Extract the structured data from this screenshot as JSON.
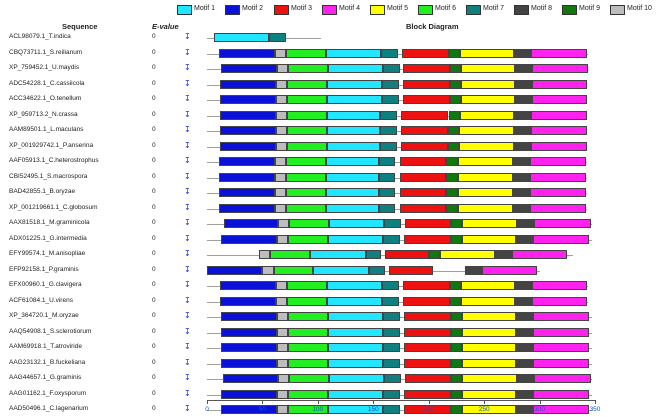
{
  "legend": [
    {
      "label": "Motif 1",
      "color": "#22e5ff"
    },
    {
      "label": "Motif 2",
      "color": "#0a12d8"
    },
    {
      "label": "Motif 3",
      "color": "#ee1111"
    },
    {
      "label": "Motif 4",
      "color": "#ff22ee"
    },
    {
      "label": "Motif 5",
      "color": "#ffff00"
    },
    {
      "label": "Motif 6",
      "color": "#22ee22"
    },
    {
      "label": "Motif 7",
      "color": "#0f7f7f"
    },
    {
      "label": "Motif 8",
      "color": "#444444"
    },
    {
      "label": "Motif 9",
      "color": "#117711"
    },
    {
      "label": "Motif 10",
      "color": "#bdbdbd"
    }
  ],
  "headers": {
    "sequence": "Sequence",
    "evalue": "E-value",
    "block": "Block Diagram"
  },
  "strand_icon": "↧",
  "axis": {
    "ticks": [
      0,
      50,
      100,
      150,
      200,
      250,
      300,
      350
    ],
    "max": 350
  },
  "rows": [
    {
      "name": "ACL98079.1_T.indica",
      "evalue": "0",
      "len": 103,
      "motifs": [
        [
          1,
          6,
          56
        ],
        [
          7,
          56,
          71
        ]
      ]
    },
    {
      "name": "CBQ73711.1_S.reilianum",
      "evalue": "0",
      "len": 344,
      "motifs": [
        [
          2,
          11,
          61
        ],
        [
          10,
          61,
          71
        ],
        [
          6,
          71,
          107
        ],
        [
          1,
          107,
          157
        ],
        [
          7,
          157,
          172
        ],
        [
          3,
          176,
          218
        ],
        [
          9,
          218,
          228
        ],
        [
          5,
          228,
          277
        ],
        [
          8,
          277,
          292
        ],
        [
          4,
          292,
          343
        ]
      ]
    },
    {
      "name": "XP_759452.1_U.maydis",
      "evalue": "0",
      "len": 344,
      "motifs": [
        [
          2,
          13,
          63
        ],
        [
          10,
          63,
          73
        ],
        [
          6,
          73,
          109
        ],
        [
          1,
          109,
          159
        ],
        [
          7,
          159,
          174
        ],
        [
          3,
          177,
          219
        ],
        [
          9,
          219,
          229
        ],
        [
          5,
          229,
          278
        ],
        [
          8,
          278,
          293
        ],
        [
          4,
          293,
          344
        ]
      ]
    },
    {
      "name": "ADC54228.1_C.cassiicola",
      "evalue": "0",
      "len": 343,
      "motifs": [
        [
          2,
          12,
          62
        ],
        [
          10,
          62,
          72
        ],
        [
          6,
          72,
          108
        ],
        [
          1,
          108,
          158
        ],
        [
          7,
          158,
          173
        ],
        [
          3,
          177,
          219
        ],
        [
          9,
          219,
          229
        ],
        [
          5,
          229,
          278
        ],
        [
          8,
          278,
          293
        ],
        [
          4,
          293,
          343
        ]
      ]
    },
    {
      "name": "ACC34622.1_O.tenellum",
      "evalue": "0",
      "len": 343,
      "motifs": [
        [
          2,
          12,
          62
        ],
        [
          10,
          62,
          72
        ],
        [
          6,
          72,
          108
        ],
        [
          1,
          108,
          158
        ],
        [
          7,
          158,
          173
        ],
        [
          3,
          177,
          219
        ],
        [
          9,
          219,
          229
        ],
        [
          5,
          229,
          278
        ],
        [
          8,
          278,
          293
        ],
        [
          4,
          293,
          343
        ]
      ]
    },
    {
      "name": "XP_959713.2_N.crassa",
      "evalue": "0",
      "len": 343,
      "motifs": [
        [
          2,
          12,
          62
        ],
        [
          10,
          62,
          72
        ],
        [
          6,
          72,
          108
        ],
        [
          1,
          108,
          156
        ],
        [
          7,
          156,
          171
        ],
        [
          3,
          175,
          217
        ],
        [
          9,
          218,
          228
        ],
        [
          5,
          228,
          277
        ],
        [
          8,
          277,
          292
        ],
        [
          4,
          292,
          343
        ]
      ]
    },
    {
      "name": "AAM89501.1_L.maculans",
      "evalue": "0",
      "len": 343,
      "motifs": [
        [
          2,
          12,
          62
        ],
        [
          10,
          62,
          72
        ],
        [
          6,
          72,
          108
        ],
        [
          1,
          108,
          156
        ],
        [
          7,
          156,
          171
        ],
        [
          3,
          175,
          217
        ],
        [
          9,
          217,
          227
        ],
        [
          5,
          227,
          277
        ],
        [
          8,
          277,
          292
        ],
        [
          4,
          292,
          343
        ]
      ]
    },
    {
      "name": "XP_001929742.1_P.anserina",
      "evalue": "0",
      "len": 343,
      "motifs": [
        [
          2,
          12,
          62
        ],
        [
          10,
          62,
          72
        ],
        [
          6,
          72,
          108
        ],
        [
          1,
          108,
          156
        ],
        [
          7,
          156,
          171
        ],
        [
          3,
          175,
          217
        ],
        [
          9,
          217,
          227
        ],
        [
          5,
          227,
          277
        ],
        [
          8,
          277,
          292
        ],
        [
          4,
          292,
          343
        ]
      ]
    },
    {
      "name": "AAF05913.1_C.heterostrophus",
      "evalue": "0",
      "len": 343,
      "motifs": [
        [
          2,
          11,
          61
        ],
        [
          10,
          61,
          71
        ],
        [
          6,
          71,
          107
        ],
        [
          1,
          107,
          155
        ],
        [
          7,
          155,
          170
        ],
        [
          3,
          174,
          216
        ],
        [
          9,
          216,
          226
        ],
        [
          5,
          226,
          276
        ],
        [
          8,
          276,
          291
        ],
        [
          4,
          291,
          342
        ]
      ]
    },
    {
      "name": "CBI52495.1_S.macrospora",
      "evalue": "0",
      "len": 343,
      "motifs": [
        [
          2,
          11,
          61
        ],
        [
          10,
          61,
          71
        ],
        [
          6,
          71,
          107
        ],
        [
          1,
          107,
          155
        ],
        [
          7,
          155,
          170
        ],
        [
          3,
          174,
          216
        ],
        [
          9,
          216,
          226
        ],
        [
          5,
          226,
          276
        ],
        [
          8,
          276,
          291
        ],
        [
          4,
          291,
          342
        ]
      ]
    },
    {
      "name": "BAD42855.1_B.oryzae",
      "evalue": "0",
      "len": 343,
      "motifs": [
        [
          2,
          11,
          61
        ],
        [
          10,
          61,
          71
        ],
        [
          6,
          71,
          107
        ],
        [
          1,
          107,
          155
        ],
        [
          7,
          155,
          170
        ],
        [
          3,
          174,
          216
        ],
        [
          9,
          216,
          226
        ],
        [
          5,
          226,
          276
        ],
        [
          8,
          276,
          291
        ],
        [
          4,
          291,
          342
        ]
      ]
    },
    {
      "name": "XP_001219661.1_C.globosum",
      "evalue": "0",
      "len": 343,
      "motifs": [
        [
          2,
          11,
          61
        ],
        [
          10,
          61,
          71
        ],
        [
          6,
          71,
          107
        ],
        [
          1,
          107,
          155
        ],
        [
          7,
          155,
          170
        ],
        [
          3,
          174,
          216
        ],
        [
          9,
          216,
          226
        ],
        [
          5,
          226,
          276
        ],
        [
          8,
          276,
          291
        ],
        [
          4,
          291,
          342
        ]
      ]
    },
    {
      "name": "AAX81518.1_M.graminicola",
      "evalue": "0",
      "len": 347,
      "motifs": [
        [
          2,
          15,
          64
        ],
        [
          10,
          64,
          74
        ],
        [
          6,
          74,
          110
        ],
        [
          1,
          110,
          160
        ],
        [
          7,
          160,
          175
        ],
        [
          3,
          179,
          220
        ],
        [
          9,
          220,
          230
        ],
        [
          5,
          230,
          280
        ],
        [
          8,
          280,
          295
        ],
        [
          4,
          295,
          346
        ]
      ]
    },
    {
      "name": "ADX01225.1_G.intermedia",
      "evalue": "0",
      "len": 347,
      "motifs": [
        [
          2,
          13,
          63
        ],
        [
          10,
          63,
          73
        ],
        [
          6,
          73,
          109
        ],
        [
          1,
          109,
          159
        ],
        [
          7,
          159,
          174
        ],
        [
          3,
          178,
          220
        ],
        [
          9,
          220,
          230
        ],
        [
          5,
          230,
          279
        ],
        [
          8,
          279,
          294
        ],
        [
          4,
          294,
          345
        ]
      ]
    },
    {
      "name": "EFY99574.1_M.anisopliae",
      "evalue": "0",
      "len": 330,
      "motifs": [
        [
          10,
          47,
          57
        ],
        [
          6,
          57,
          93
        ],
        [
          1,
          93,
          143
        ],
        [
          7,
          143,
          157
        ],
        [
          3,
          161,
          200
        ],
        [
          9,
          200,
          210
        ],
        [
          5,
          210,
          260
        ],
        [
          8,
          260,
          275
        ],
        [
          4,
          275,
          325
        ]
      ]
    },
    {
      "name": "EFP92158.1_P.graminis",
      "evalue": "0",
      "len": 300,
      "motifs": [
        [
          2,
          0,
          50
        ],
        [
          10,
          50,
          60
        ],
        [
          6,
          60,
          96
        ],
        [
          1,
          96,
          146
        ],
        [
          7,
          146,
          161
        ],
        [
          3,
          164,
          204
        ],
        [
          8,
          233,
          248
        ],
        [
          4,
          248,
          298
        ]
      ]
    },
    {
      "name": "EFX00960.1_G.clavigera",
      "evalue": "0",
      "len": 344,
      "motifs": [
        [
          2,
          12,
          62
        ],
        [
          10,
          62,
          72
        ],
        [
          6,
          72,
          108
        ],
        [
          1,
          108,
          158
        ],
        [
          7,
          158,
          173
        ],
        [
          3,
          177,
          219
        ],
        [
          9,
          219,
          229
        ],
        [
          5,
          229,
          278
        ],
        [
          8,
          278,
          293
        ],
        [
          4,
          293,
          343
        ]
      ]
    },
    {
      "name": "ACF61084.1_U.virens",
      "evalue": "0",
      "len": 344,
      "motifs": [
        [
          2,
          12,
          62
        ],
        [
          10,
          62,
          72
        ],
        [
          6,
          72,
          108
        ],
        [
          1,
          108,
          158
        ],
        [
          7,
          158,
          173
        ],
        [
          3,
          177,
          219
        ],
        [
          9,
          219,
          229
        ],
        [
          5,
          229,
          278
        ],
        [
          8,
          278,
          293
        ],
        [
          4,
          293,
          343
        ]
      ]
    },
    {
      "name": "XP_364720.1_M.oryzae",
      "evalue": "0",
      "len": 347,
      "motifs": [
        [
          2,
          13,
          63
        ],
        [
          10,
          63,
          73
        ],
        [
          6,
          73,
          109
        ],
        [
          1,
          109,
          159
        ],
        [
          7,
          159,
          174
        ],
        [
          3,
          178,
          220
        ],
        [
          9,
          220,
          230
        ],
        [
          5,
          230,
          279
        ],
        [
          8,
          279,
          294
        ],
        [
          4,
          294,
          345
        ]
      ]
    },
    {
      "name": "AAQ54908.1_S.sclerotiorum",
      "evalue": "0",
      "len": 347,
      "motifs": [
        [
          2,
          13,
          63
        ],
        [
          10,
          63,
          73
        ],
        [
          6,
          73,
          109
        ],
        [
          1,
          109,
          159
        ],
        [
          7,
          159,
          174
        ],
        [
          3,
          178,
          220
        ],
        [
          9,
          220,
          230
        ],
        [
          5,
          230,
          279
        ],
        [
          8,
          279,
          294
        ],
        [
          4,
          294,
          345
        ]
      ]
    },
    {
      "name": "AAM69918.1_T.atroviride",
      "evalue": "0",
      "len": 347,
      "motifs": [
        [
          2,
          13,
          63
        ],
        [
          10,
          63,
          73
        ],
        [
          6,
          73,
          109
        ],
        [
          1,
          109,
          159
        ],
        [
          7,
          159,
          174
        ],
        [
          3,
          178,
          220
        ],
        [
          9,
          220,
          230
        ],
        [
          5,
          230,
          279
        ],
        [
          8,
          279,
          294
        ],
        [
          4,
          294,
          345
        ]
      ]
    },
    {
      "name": "AAG23132.1_B.fuckeliana",
      "evalue": "0",
      "len": 347,
      "motifs": [
        [
          2,
          13,
          63
        ],
        [
          10,
          63,
          73
        ],
        [
          6,
          73,
          109
        ],
        [
          1,
          109,
          159
        ],
        [
          7,
          159,
          174
        ],
        [
          3,
          178,
          220
        ],
        [
          9,
          220,
          230
        ],
        [
          5,
          230,
          279
        ],
        [
          8,
          279,
          294
        ],
        [
          4,
          294,
          345
        ]
      ]
    },
    {
      "name": "AAG44657.1_G.graminis",
      "evalue": "0",
      "len": 347,
      "motifs": [
        [
          2,
          14,
          64
        ],
        [
          10,
          64,
          74
        ],
        [
          6,
          74,
          110
        ],
        [
          1,
          110,
          160
        ],
        [
          7,
          160,
          175
        ],
        [
          3,
          179,
          220
        ],
        [
          9,
          220,
          230
        ],
        [
          5,
          230,
          280
        ],
        [
          8,
          280,
          295
        ],
        [
          4,
          295,
          346
        ]
      ]
    },
    {
      "name": "AAG01162.1_F.oxysporum",
      "evalue": "0",
      "len": 347,
      "motifs": [
        [
          2,
          13,
          63
        ],
        [
          10,
          63,
          73
        ],
        [
          6,
          73,
          109
        ],
        [
          1,
          109,
          159
        ],
        [
          7,
          159,
          174
        ],
        [
          3,
          178,
          220
        ],
        [
          9,
          220,
          230
        ],
        [
          5,
          230,
          279
        ],
        [
          8,
          279,
          294
        ],
        [
          4,
          294,
          345
        ]
      ]
    },
    {
      "name": "AAD50496.1_C.lagenarium",
      "evalue": "0",
      "len": 347,
      "motifs": [
        [
          2,
          13,
          63
        ],
        [
          10,
          63,
          73
        ],
        [
          6,
          73,
          109
        ],
        [
          1,
          109,
          159
        ],
        [
          7,
          159,
          174
        ],
        [
          3,
          178,
          220
        ],
        [
          9,
          220,
          230
        ],
        [
          5,
          230,
          279
        ],
        [
          8,
          279,
          294
        ],
        [
          4,
          294,
          345
        ]
      ]
    }
  ]
}
